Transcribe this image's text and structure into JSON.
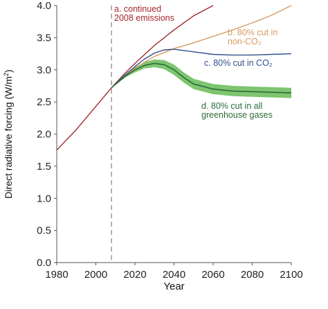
{
  "chart_data": {
    "type": "line",
    "xlabel": "Year",
    "ylabel": "Direct radiative forcing (W/m²)",
    "xlim": [
      1980,
      2100
    ],
    "ylim": [
      0.0,
      4.0
    ],
    "xticks": [
      "1980",
      "2000",
      "2020",
      "2040",
      "2060",
      "2080",
      "2100"
    ],
    "yticks": [
      "0.0",
      "0.5",
      "1.0",
      "1.5",
      "2.0",
      "2.5",
      "3.0",
      "3.5",
      "4.0"
    ],
    "reference_line": {
      "x": 2008,
      "style": "dashed",
      "color": "#8a8a8a"
    },
    "series": [
      {
        "name_lines": [
          "a. continued",
          "2008 emissions"
        ],
        "color": "#a3282b",
        "x": [
          1980,
          1990,
          2000,
          2008,
          2015,
          2020,
          2030,
          2040,
          2050,
          2060
        ],
        "y": [
          1.75,
          2.07,
          2.43,
          2.72,
          2.95,
          3.1,
          3.38,
          3.62,
          3.84,
          4.0
        ]
      },
      {
        "name_lines": [
          "b. 80% cut in",
          "non-CO₂"
        ],
        "color": "#d59a5f",
        "x": [
          2008,
          2015,
          2020,
          2025,
          2030,
          2035,
          2040,
          2050,
          2060,
          2070,
          2080,
          2090,
          2100
        ],
        "y": [
          2.72,
          2.92,
          3.02,
          3.12,
          3.21,
          3.27,
          3.33,
          3.42,
          3.52,
          3.62,
          3.73,
          3.85,
          4.0
        ]
      },
      {
        "name_lines": [
          "c. 80% cut in CO₂"
        ],
        "color": "#2e4e8c",
        "x": [
          2008,
          2015,
          2020,
          2025,
          2030,
          2035,
          2040,
          2050,
          2060,
          2070,
          2080,
          2090,
          2100
        ],
        "y": [
          2.72,
          2.92,
          3.05,
          3.17,
          3.26,
          3.31,
          3.32,
          3.28,
          3.24,
          3.23,
          3.23,
          3.24,
          3.25
        ]
      },
      {
        "name_lines": [
          "d. 80% cut in all",
          "greenhouse gases"
        ],
        "color": "#2b6b3a",
        "band_color": "#6fbf5f",
        "x": [
          2008,
          2015,
          2020,
          2025,
          2030,
          2035,
          2040,
          2045,
          2050,
          2060,
          2070,
          2080,
          2090,
          2100
        ],
        "y": [
          2.72,
          2.9,
          3.0,
          3.07,
          3.1,
          3.08,
          3.0,
          2.88,
          2.78,
          2.7,
          2.67,
          2.66,
          2.65,
          2.64
        ],
        "band_half_width": [
          0.0,
          0.02,
          0.04,
          0.05,
          0.06,
          0.07,
          0.08,
          0.08,
          0.08,
          0.08,
          0.08,
          0.08,
          0.08,
          0.08
        ]
      }
    ]
  }
}
